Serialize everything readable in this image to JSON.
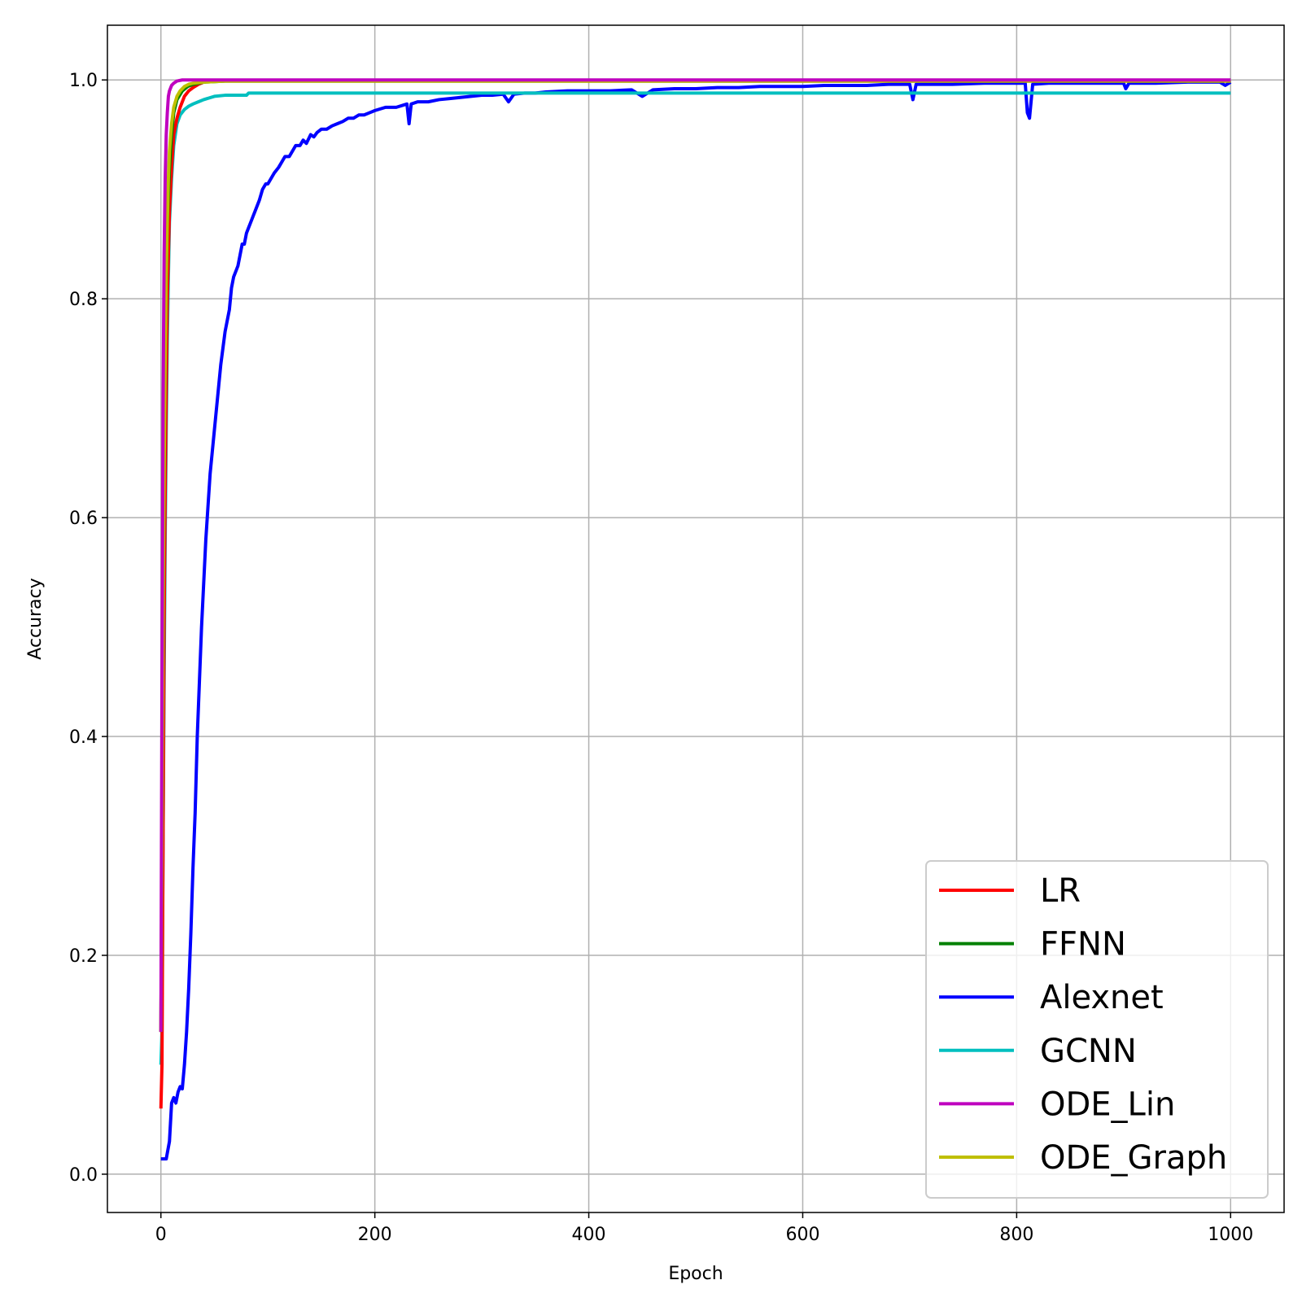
{
  "chart_data": {
    "type": "line",
    "xlabel": "Epoch",
    "ylabel": "Accuracy",
    "xlim": [
      -50,
      1050
    ],
    "ylim": [
      -0.035,
      1.05
    ],
    "xticks": [
      0,
      200,
      400,
      600,
      800,
      1000
    ],
    "xtick_labels": [
      "0",
      "200",
      "400",
      "600",
      "800",
      "1000"
    ],
    "yticks": [
      0.0,
      0.2,
      0.4,
      0.6,
      0.8,
      1.0
    ],
    "ytick_labels": [
      "0.0",
      "0.2",
      "0.4",
      "0.6",
      "0.8",
      "1.0"
    ],
    "grid": true,
    "legend_position": "bottom-right",
    "series": [
      {
        "name": "LR",
        "color": "#ff0000",
        "x": [
          0,
          1,
          2,
          3,
          4,
          5,
          6,
          8,
          10,
          12,
          15,
          18,
          22,
          26,
          30,
          35,
          40,
          50,
          60,
          100,
          200,
          400,
          600,
          800,
          1000
        ],
        "y": [
          0.06,
          0.1,
          0.3,
          0.5,
          0.62,
          0.72,
          0.8,
          0.88,
          0.92,
          0.95,
          0.965,
          0.975,
          0.985,
          0.99,
          0.993,
          0.996,
          0.998,
          0.999,
          0.999,
          0.999,
          0.999,
          0.999,
          0.999,
          0.999,
          0.999
        ]
      },
      {
        "name": "FFNN",
        "color": "#008000",
        "x": [
          0,
          1,
          2,
          3,
          4,
          5,
          6,
          8,
          10,
          12,
          15,
          20,
          25,
          30,
          40,
          60,
          100,
          200,
          400,
          600,
          800,
          1000
        ],
        "y": [
          0.13,
          0.3,
          0.5,
          0.65,
          0.75,
          0.82,
          0.87,
          0.92,
          0.95,
          0.97,
          0.982,
          0.99,
          0.994,
          0.996,
          0.998,
          0.999,
          0.999,
          0.999,
          0.999,
          0.999,
          0.999,
          0.999
        ]
      },
      {
        "name": "Alexnet",
        "color": "#0000ff",
        "x": [
          0,
          5,
          8,
          10,
          12,
          14,
          16,
          18,
          20,
          22,
          24,
          26,
          28,
          30,
          32,
          34,
          36,
          38,
          40,
          42,
          44,
          46,
          48,
          50,
          52,
          54,
          56,
          58,
          60,
          62,
          64,
          66,
          68,
          70,
          72,
          74,
          76,
          78,
          80,
          82,
          84,
          86,
          88,
          90,
          92,
          95,
          98,
          100,
          103,
          106,
          110,
          113,
          116,
          120,
          123,
          126,
          130,
          133,
          136,
          140,
          143,
          146,
          150,
          155,
          160,
          165,
          170,
          175,
          180,
          185,
          190,
          195,
          200,
          210,
          220,
          230,
          232,
          234,
          240,
          250,
          260,
          270,
          280,
          290,
          300,
          310,
          320,
          325,
          330,
          340,
          350,
          360,
          380,
          400,
          420,
          440,
          450,
          460,
          480,
          500,
          520,
          540,
          560,
          580,
          600,
          620,
          640,
          660,
          680,
          700,
          703,
          706,
          710,
          740,
          770,
          800,
          808,
          810,
          812,
          815,
          830,
          860,
          900,
          902,
          905,
          930,
          960,
          990,
          995,
          1000
        ],
        "y": [
          0.014,
          0.014,
          0.03,
          0.065,
          0.07,
          0.065,
          0.075,
          0.08,
          0.078,
          0.1,
          0.13,
          0.17,
          0.22,
          0.28,
          0.33,
          0.4,
          0.45,
          0.5,
          0.54,
          0.58,
          0.61,
          0.64,
          0.66,
          0.68,
          0.7,
          0.72,
          0.74,
          0.755,
          0.77,
          0.78,
          0.79,
          0.81,
          0.82,
          0.825,
          0.83,
          0.84,
          0.85,
          0.85,
          0.86,
          0.865,
          0.87,
          0.875,
          0.88,
          0.885,
          0.89,
          0.9,
          0.905,
          0.905,
          0.91,
          0.915,
          0.92,
          0.925,
          0.93,
          0.93,
          0.935,
          0.94,
          0.94,
          0.945,
          0.942,
          0.95,
          0.948,
          0.952,
          0.955,
          0.955,
          0.958,
          0.96,
          0.962,
          0.965,
          0.965,
          0.968,
          0.968,
          0.97,
          0.972,
          0.975,
          0.975,
          0.978,
          0.96,
          0.978,
          0.98,
          0.98,
          0.982,
          0.983,
          0.984,
          0.985,
          0.986,
          0.986,
          0.987,
          0.98,
          0.987,
          0.988,
          0.988,
          0.989,
          0.99,
          0.99,
          0.99,
          0.991,
          0.985,
          0.991,
          0.992,
          0.992,
          0.993,
          0.993,
          0.994,
          0.994,
          0.994,
          0.995,
          0.995,
          0.995,
          0.996,
          0.996,
          0.982,
          0.996,
          0.996,
          0.996,
          0.997,
          0.997,
          0.997,
          0.97,
          0.965,
          0.996,
          0.997,
          0.997,
          0.997,
          0.992,
          0.997,
          0.997,
          0.998,
          0.998,
          0.995,
          0.998
        ]
      },
      {
        "name": "GCNN",
        "color": "#00bfbf",
        "x": [
          0,
          1,
          2,
          3,
          4,
          5,
          6,
          7,
          8,
          10,
          12,
          15,
          18,
          22,
          26,
          30,
          35,
          40,
          50,
          60,
          80,
          82,
          100,
          200,
          400,
          600,
          800,
          1000
        ],
        "y": [
          0.1,
          0.13,
          0.3,
          0.45,
          0.58,
          0.68,
          0.76,
          0.82,
          0.87,
          0.91,
          0.94,
          0.96,
          0.968,
          0.973,
          0.976,
          0.978,
          0.98,
          0.982,
          0.985,
          0.986,
          0.986,
          0.988,
          0.988,
          0.988,
          0.988,
          0.988,
          0.988,
          0.988
        ]
      },
      {
        "name": "ODE_Lin",
        "color": "#bf00bf",
        "x": [
          0,
          1,
          2,
          3,
          4,
          5,
          6,
          7,
          8,
          10,
          12,
          15,
          20,
          30,
          40,
          60,
          100,
          200,
          400,
          600,
          800,
          1000
        ],
        "y": [
          0.13,
          0.45,
          0.7,
          0.84,
          0.91,
          0.95,
          0.97,
          0.985,
          0.99,
          0.995,
          0.997,
          0.999,
          1.0,
          1.0,
          1.0,
          1.0,
          1.0,
          1.0,
          1.0,
          1.0,
          1.0,
          1.0
        ]
      },
      {
        "name": "ODE_Graph",
        "color": "#bfbf00",
        "x": [
          0,
          1,
          2,
          3,
          4,
          5,
          6,
          7,
          8,
          10,
          12,
          15,
          18,
          22,
          26,
          30,
          40,
          60,
          100,
          200,
          400,
          600,
          800,
          1000
        ],
        "y": [
          0.13,
          0.3,
          0.5,
          0.64,
          0.74,
          0.82,
          0.87,
          0.91,
          0.935,
          0.96,
          0.975,
          0.985,
          0.99,
          0.994,
          0.996,
          0.997,
          0.998,
          0.999,
          0.999,
          0.999,
          0.999,
          0.999,
          0.999,
          0.999
        ]
      }
    ]
  }
}
